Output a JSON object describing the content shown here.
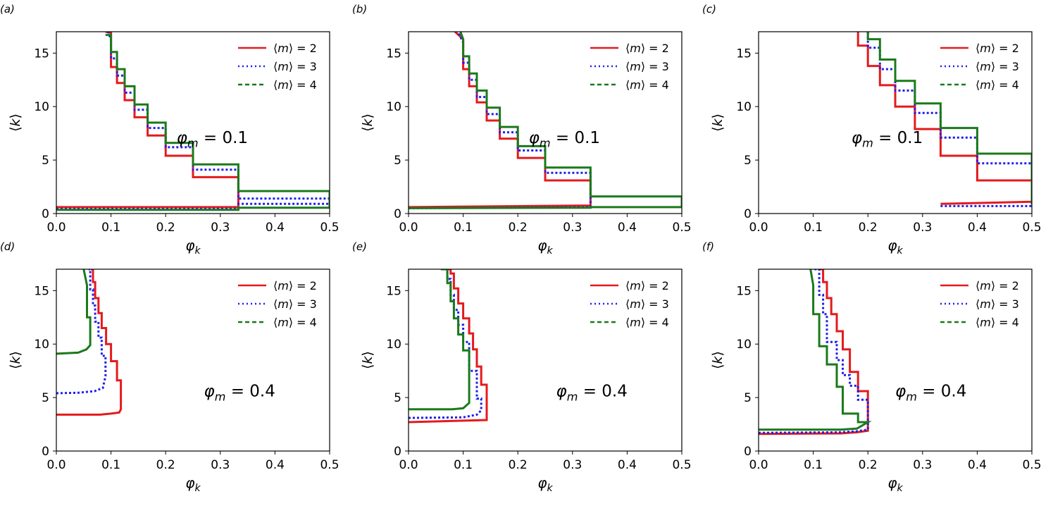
{
  "figure": {
    "legend_labels": [
      "⟨m⟩ = 2",
      "⟨m⟩ = 3",
      "⟨m⟩ = 4"
    ],
    "series_colors": [
      "#e41a1c",
      "#1f1fee",
      "#1a7a1a"
    ]
  },
  "chart_data": [
    {
      "type": "line",
      "panel_label": "(a)",
      "annotation": "φm = 0.1",
      "xlabel": "φk",
      "ylabel": "⟨k⟩",
      "xlim": [
        0.0,
        0.5
      ],
      "ylim": [
        0,
        17
      ],
      "xticks": [
        "0.0",
        "0.1",
        "0.2",
        "0.3",
        "0.4",
        "0.5"
      ],
      "yticks": [
        "0",
        "5",
        "10",
        "15"
      ],
      "series": [
        {
          "name": "⟨m⟩ = 2",
          "style": "solid",
          "x": [
            0.0,
            0.333,
            0.333,
            0.333,
            0.25,
            0.25,
            0.2,
            0.2,
            0.167,
            0.167,
            0.143,
            0.143,
            0.125,
            0.125,
            0.111,
            0.111,
            0.1,
            0.1,
            0.09
          ],
          "y": [
            0.6,
            0.6,
            0.6,
            3.4,
            3.4,
            5.4,
            5.4,
            7.3,
            7.3,
            9.0,
            9.0,
            10.6,
            10.6,
            12.2,
            12.2,
            13.7,
            13.7,
            16.9,
            17.0
          ]
        },
        {
          "name": "⟨m⟩ = 3",
          "style": "dotted",
          "x": [
            0.0,
            0.333,
            0.333,
            0.5,
            0.5,
            0.333,
            0.333,
            0.25,
            0.25,
            0.2,
            0.2,
            0.167,
            0.167,
            0.143,
            0.143,
            0.125,
            0.125,
            0.111,
            0.111,
            0.1,
            0.1,
            0.095
          ],
          "y": [
            0.45,
            0.45,
            0.9,
            0.9,
            1.4,
            1.4,
            4.1,
            4.1,
            6.2,
            6.2,
            8.0,
            8.0,
            9.7,
            9.7,
            11.3,
            11.3,
            12.9,
            12.9,
            14.5,
            14.5,
            16.2,
            17.0
          ]
        },
        {
          "name": "⟨m⟩ = 4",
          "style": "dashed",
          "x": [
            0.0,
            0.333,
            0.333,
            0.5,
            0.5,
            0.333,
            0.333,
            0.25,
            0.25,
            0.2,
            0.2,
            0.167,
            0.167,
            0.143,
            0.143,
            0.125,
            0.125,
            0.111,
            0.111,
            0.1,
            0.1,
            0.09
          ],
          "y": [
            0.35,
            0.35,
            0.55,
            0.55,
            2.1,
            2.1,
            4.6,
            4.6,
            6.6,
            6.6,
            8.5,
            8.5,
            10.2,
            10.2,
            11.9,
            11.9,
            13.5,
            13.5,
            15.1,
            15.1,
            16.7,
            16.7
          ]
        }
      ]
    },
    {
      "type": "line",
      "panel_label": "(b)",
      "annotation": "φm = 0.1",
      "xlabel": "φk",
      "ylabel": "⟨k⟩",
      "xlim": [
        0.0,
        0.5
      ],
      "ylim": [
        0,
        17
      ],
      "xticks": [
        "0.0",
        "0.1",
        "0.2",
        "0.3",
        "0.4",
        "0.5"
      ],
      "yticks": [
        "0",
        "5",
        "10",
        "15"
      ],
      "series": [
        {
          "name": "⟨m⟩ = 2",
          "style": "solid",
          "x": [
            0.0,
            0.333,
            0.333,
            0.25,
            0.25,
            0.2,
            0.2,
            0.167,
            0.167,
            0.143,
            0.143,
            0.125,
            0.125,
            0.111,
            0.111,
            0.1,
            0.1,
            0.085
          ],
          "y": [
            0.6,
            0.75,
            3.1,
            3.1,
            5.2,
            5.2,
            7.0,
            7.0,
            8.7,
            8.7,
            10.4,
            10.4,
            11.9,
            11.9,
            13.5,
            13.5,
            16.3,
            17.0
          ]
        },
        {
          "name": "⟨m⟩ = 3",
          "style": "dotted",
          "x": [
            0.0,
            0.333,
            0.333,
            0.25,
            0.25,
            0.2,
            0.2,
            0.167,
            0.167,
            0.143,
            0.143,
            0.125,
            0.125,
            0.111,
            0.111,
            0.1,
            0.1,
            0.09
          ],
          "y": [
            0.5,
            0.6,
            3.8,
            3.8,
            5.9,
            5.9,
            7.6,
            7.6,
            9.3,
            9.3,
            10.9,
            10.9,
            12.5,
            12.5,
            14.1,
            14.1,
            16.0,
            17.0
          ]
        },
        {
          "name": "⟨m⟩ = 4",
          "style": "dashed",
          "x": [
            0.0,
            0.333,
            0.333,
            0.5,
            0.5,
            0.333,
            0.333,
            0.25,
            0.25,
            0.2,
            0.2,
            0.167,
            0.167,
            0.143,
            0.143,
            0.125,
            0.125,
            0.111,
            0.111,
            0.1,
            0.1,
            0.095
          ],
          "y": [
            0.5,
            0.55,
            0.6,
            0.6,
            1.6,
            1.6,
            4.3,
            4.3,
            6.3,
            6.3,
            8.1,
            8.1,
            9.9,
            9.9,
            11.5,
            11.5,
            13.1,
            13.1,
            14.7,
            14.7,
            16.3,
            17.0
          ]
        }
      ]
    },
    {
      "type": "line",
      "panel_label": "(c)",
      "annotation": "φm = 0.1",
      "xlabel": "φk",
      "ylabel": "⟨k⟩",
      "xlim": [
        0.0,
        0.5
      ],
      "ylim": [
        0,
        17
      ],
      "xticks": [
        "0.0",
        "0.1",
        "0.2",
        "0.3",
        "0.4",
        "0.5"
      ],
      "yticks": [
        "0",
        "5",
        "10",
        "15"
      ],
      "series": [
        {
          "name": "⟨m⟩ = 2",
          "style": "solid",
          "x": [
            0.333,
            0.5,
            0.5,
            0.4,
            0.4,
            0.333,
            0.333,
            0.286,
            0.286,
            0.25,
            0.25,
            0.222,
            0.222,
            0.2,
            0.2,
            0.182,
            0.182
          ],
          "y": [
            0.9,
            1.1,
            3.1,
            3.1,
            5.4,
            5.4,
            7.9,
            7.9,
            10.0,
            10.0,
            12.0,
            12.0,
            13.8,
            13.8,
            15.7,
            15.7,
            17.0
          ]
        },
        {
          "name": "⟨m⟩ = 3",
          "style": "dotted",
          "x": [
            0.333,
            0.5,
            0.5,
            0.4,
            0.4,
            0.333,
            0.333,
            0.286,
            0.286,
            0.25,
            0.25,
            0.222,
            0.222,
            0.2,
            0.2
          ],
          "y": [
            0.7,
            0.7,
            4.7,
            4.7,
            7.1,
            7.1,
            9.4,
            9.4,
            11.5,
            11.5,
            13.5,
            13.5,
            15.5,
            15.5,
            17.0
          ]
        },
        {
          "name": "⟨m⟩ = 4",
          "style": "dashed",
          "x": [
            0.5,
            0.5,
            0.4,
            0.4,
            0.333,
            0.333,
            0.286,
            0.286,
            0.25,
            0.25,
            0.222,
            0.222,
            0.2,
            0.2
          ],
          "y": [
            0.9,
            5.6,
            5.6,
            8.0,
            8.0,
            10.3,
            10.3,
            12.4,
            12.4,
            14.4,
            14.4,
            16.3,
            16.3,
            17.0
          ]
        }
      ]
    },
    {
      "type": "line",
      "panel_label": "(d)",
      "annotation": "φm = 0.4",
      "xlabel": "φk",
      "ylabel": "⟨k⟩",
      "xlim": [
        0.0,
        0.5
      ],
      "ylim": [
        0,
        17
      ],
      "xticks": [
        "0.0",
        "0.1",
        "0.2",
        "0.3",
        "0.4",
        "0.5"
      ],
      "yticks": [
        "0",
        "5",
        "10",
        "15"
      ],
      "series": [
        {
          "name": "⟨m⟩ = 2",
          "style": "solid",
          "x": [
            0.0,
            0.08,
            0.1,
            0.115,
            0.118,
            0.118,
            0.111,
            0.111,
            0.1,
            0.1,
            0.091,
            0.091,
            0.083,
            0.083,
            0.077,
            0.077,
            0.071,
            0.071,
            0.067,
            0.067,
            0.063,
            0.063
          ],
          "y": [
            3.4,
            3.4,
            3.5,
            3.6,
            3.9,
            6.6,
            6.6,
            8.4,
            8.4,
            10.0,
            10.0,
            11.5,
            11.5,
            12.9,
            12.9,
            14.3,
            14.3,
            15.8,
            15.8,
            17.0,
            17.0,
            17.0
          ]
        },
        {
          "name": "⟨m⟩ = 3",
          "style": "dotted",
          "x": [
            0.0,
            0.04,
            0.07,
            0.085,
            0.09,
            0.09,
            0.083,
            0.083,
            0.077,
            0.077,
            0.071,
            0.071,
            0.067,
            0.067,
            0.062,
            0.062,
            0.059
          ],
          "y": [
            5.4,
            5.45,
            5.6,
            5.9,
            7.0,
            8.9,
            8.9,
            10.6,
            10.6,
            12.1,
            12.1,
            13.6,
            13.6,
            15.1,
            15.1,
            17.0,
            17.0
          ]
        },
        {
          "name": "⟨m⟩ = 4",
          "style": "dashed",
          "x": [
            0.0,
            0.04,
            0.055,
            0.062,
            0.062,
            0.056,
            0.056,
            0.05
          ],
          "y": [
            9.1,
            9.2,
            9.5,
            9.9,
            12.5,
            12.5,
            15.5,
            17.0
          ]
        }
      ]
    },
    {
      "type": "line",
      "panel_label": "(e)",
      "annotation": "φm = 0.4",
      "xlabel": "φk",
      "ylabel": "⟨k⟩",
      "xlim": [
        0.0,
        0.5
      ],
      "ylim": [
        0,
        17
      ],
      "xticks": [
        "0.0",
        "0.1",
        "0.2",
        "0.3",
        "0.4",
        "0.5"
      ],
      "yticks": [
        "0",
        "5",
        "10",
        "15"
      ],
      "series": [
        {
          "name": "⟨m⟩ = 2",
          "style": "solid",
          "x": [
            0.0,
            0.143,
            0.143,
            0.133,
            0.133,
            0.125,
            0.125,
            0.118,
            0.118,
            0.111,
            0.111,
            0.1,
            0.1,
            0.091,
            0.091,
            0.083,
            0.083,
            0.077,
            0.077,
            0.071,
            0.071,
            0.067
          ],
          "y": [
            2.7,
            2.9,
            6.2,
            6.2,
            7.9,
            7.9,
            9.5,
            9.5,
            11.0,
            11.0,
            12.4,
            12.4,
            13.8,
            13.8,
            15.2,
            15.2,
            16.6,
            16.6,
            17.0,
            17.0,
            17.0,
            17.0
          ]
        },
        {
          "name": "⟨m⟩ = 3",
          "style": "dotted",
          "x": [
            0.0,
            0.1,
            0.125,
            0.133,
            0.133,
            0.125,
            0.125,
            0.111,
            0.111,
            0.1,
            0.1,
            0.091,
            0.091,
            0.083,
            0.083,
            0.077,
            0.077,
            0.071,
            0.071,
            0.065
          ],
          "y": [
            3.1,
            3.15,
            3.4,
            3.8,
            4.9,
            4.9,
            7.5,
            7.5,
            10.2,
            10.2,
            11.8,
            11.8,
            13.2,
            13.2,
            14.6,
            14.6,
            16.1,
            16.1,
            17.0,
            17.0
          ]
        },
        {
          "name": "⟨m⟩ = 4",
          "style": "dashed",
          "x": [
            0.0,
            0.08,
            0.1,
            0.111,
            0.111,
            0.1,
            0.1,
            0.091,
            0.091,
            0.083,
            0.083,
            0.077,
            0.077,
            0.071,
            0.071,
            0.063,
            0.063,
            0.059,
            0.059
          ],
          "y": [
            3.9,
            3.9,
            4.0,
            4.5,
            9.4,
            9.4,
            10.9,
            10.9,
            12.4,
            12.4,
            14.0,
            14.0,
            15.7,
            15.7,
            17.0,
            17.0,
            17.0,
            17.0,
            17.0
          ]
        }
      ]
    },
    {
      "type": "line",
      "panel_label": "(f)",
      "annotation": "φm = 0.4",
      "xlabel": "φk",
      "ylabel": "⟨k⟩",
      "xlim": [
        0.0,
        0.5
      ],
      "ylim": [
        0,
        17
      ],
      "xticks": [
        "0.0",
        "0.1",
        "0.2",
        "0.3",
        "0.4",
        "0.5"
      ],
      "yticks": [
        "0",
        "5",
        "10",
        "15"
      ],
      "series": [
        {
          "name": "⟨m⟩ = 2",
          "style": "solid",
          "x": [
            0.0,
            0.15,
            0.18,
            0.2,
            0.2,
            0.182,
            0.182,
            0.167,
            0.167,
            0.154,
            0.154,
            0.143,
            0.143,
            0.133,
            0.133,
            0.125,
            0.125,
            0.118,
            0.118,
            0.111
          ],
          "y": [
            1.6,
            1.65,
            1.75,
            1.9,
            5.6,
            5.6,
            7.4,
            7.4,
            9.5,
            9.5,
            11.2,
            11.2,
            12.8,
            12.8,
            14.3,
            14.3,
            15.8,
            15.8,
            17.0,
            17.0
          ]
        },
        {
          "name": "⟨m⟩ = 3",
          "style": "dotted",
          "x": [
            0.0,
            0.15,
            0.18,
            0.2,
            0.2,
            0.182,
            0.182,
            0.167,
            0.167,
            0.154,
            0.154,
            0.143,
            0.143,
            0.125,
            0.125,
            0.118,
            0.118,
            0.111,
            0.111,
            0.1,
            0.1
          ],
          "y": [
            1.7,
            1.75,
            1.85,
            2.0,
            4.8,
            4.8,
            6.1,
            6.1,
            7.1,
            7.1,
            8.5,
            8.5,
            10.2,
            10.2,
            12.8,
            12.8,
            14.6,
            14.6,
            17.0,
            17.0,
            17.0
          ]
        },
        {
          "name": "⟨m⟩ = 4",
          "style": "dashed",
          "x": [
            0.0,
            0.15,
            0.18,
            0.2,
            0.2,
            0.182,
            0.182,
            0.154,
            0.154,
            0.143,
            0.143,
            0.125,
            0.125,
            0.111,
            0.111,
            0.1,
            0.1,
            0.095
          ],
          "y": [
            2.0,
            2.0,
            2.1,
            2.7,
            2.7,
            2.7,
            3.5,
            3.5,
            6.0,
            6.0,
            8.1,
            8.1,
            9.8,
            9.8,
            12.8,
            12.8,
            15.5,
            17.0
          ]
        }
      ]
    }
  ]
}
